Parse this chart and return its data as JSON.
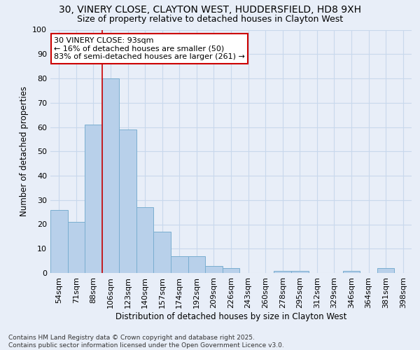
{
  "title1": "30, VINERY CLOSE, CLAYTON WEST, HUDDERSFIELD, HD8 9XH",
  "title2": "Size of property relative to detached houses in Clayton West",
  "xlabel": "Distribution of detached houses by size in Clayton West",
  "ylabel": "Number of detached properties",
  "categories": [
    "54sqm",
    "71sqm",
    "88sqm",
    "106sqm",
    "123sqm",
    "140sqm",
    "157sqm",
    "174sqm",
    "192sqm",
    "209sqm",
    "226sqm",
    "243sqm",
    "260sqm",
    "278sqm",
    "295sqm",
    "312sqm",
    "329sqm",
    "346sqm",
    "364sqm",
    "381sqm",
    "398sqm"
  ],
  "values": [
    26,
    21,
    61,
    80,
    59,
    27,
    17,
    7,
    7,
    3,
    2,
    0,
    0,
    1,
    1,
    0,
    0,
    1,
    0,
    2,
    0
  ],
  "bar_color": "#b8d0ea",
  "bar_edge_color": "#7aaed0",
  "grid_color": "#c8d8ec",
  "background_color": "#e8eef8",
  "vline_x_index": 2.5,
  "vline_color": "#cc0000",
  "annotation_text": "30 VINERY CLOSE: 93sqm\n← 16% of detached houses are smaller (50)\n83% of semi-detached houses are larger (261) →",
  "annotation_box_color": "#ffffff",
  "annotation_box_edge_color": "#cc0000",
  "footer_text": "Contains HM Land Registry data © Crown copyright and database right 2025.\nContains public sector information licensed under the Open Government Licence v3.0.",
  "ylim": [
    0,
    100
  ],
  "title1_fontsize": 10,
  "title2_fontsize": 9,
  "tick_fontsize": 8,
  "ylabel_fontsize": 8.5,
  "xlabel_fontsize": 8.5,
  "footer_fontsize": 6.5,
  "annotation_fontsize": 8
}
